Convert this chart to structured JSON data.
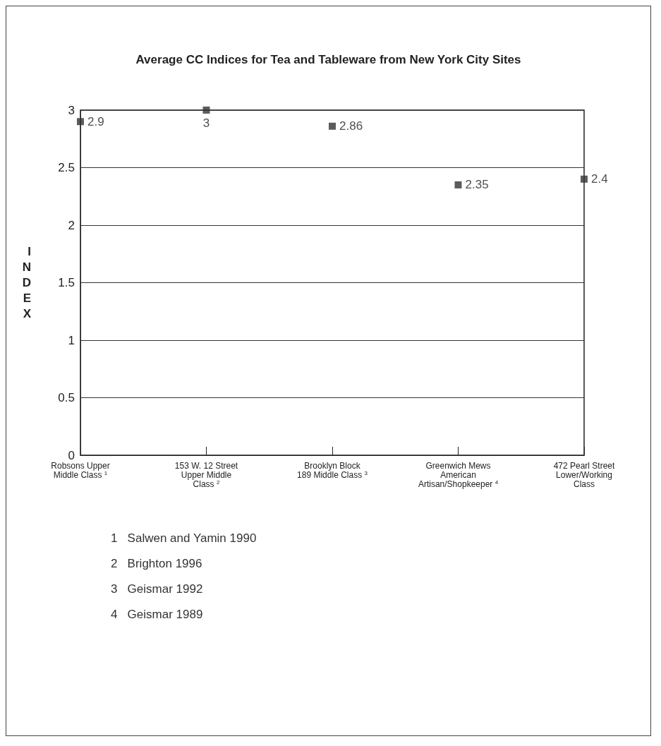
{
  "chart_data": {
    "type": "scatter",
    "title": "Average CC Indices for Tea and Tableware from New York City Sites",
    "ylabel": "INDEX",
    "categories": [
      "Robsons Upper\nMiddle Class$^{1}$",
      "153 W. 12 Street\nUpper Middle\nClass$^{2}$",
      "Brooklyn Block\n189 Middle Class$^{3}$",
      "Greenwich Mews\nAmerican\nArtisan/Shopkeeper$^{4}$",
      "472 Pearl Street\nLower/Working\nClass"
    ],
    "values": [
      2.9,
      3,
      2.86,
      2.35,
      2.4
    ],
    "color": "#333333",
    "marker": "square",
    "data_labels": true,
    "ylim": [
      0,
      3
    ],
    "yticks": [
      0,
      0.5,
      1,
      1.5,
      2,
      2.5,
      3
    ],
    "grid": "y",
    "annotations": [
      "1   Salwen and Yamin 1990",
      "2   Brighton 1996",
      "3   Geismar 1992",
      "4   Geismar 1989"
    ]
  }
}
